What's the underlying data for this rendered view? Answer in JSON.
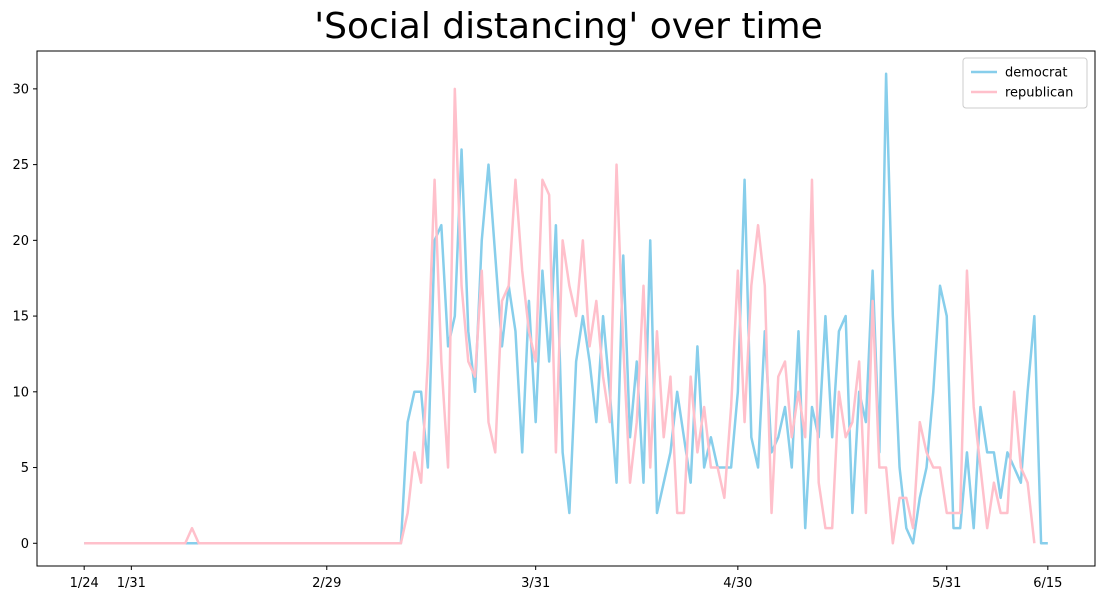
{
  "chart_data": {
    "type": "line",
    "title": "'Social distancing' over time",
    "xlabel": "",
    "ylabel": "",
    "x_tick_labels": [
      "1/24",
      "1/31",
      "2/29",
      "3/31",
      "4/30",
      "5/31",
      "6/15"
    ],
    "x_tick_day_index": [
      0,
      7,
      36,
      67,
      97,
      128,
      143
    ],
    "y_ticks": [
      0,
      5,
      10,
      15,
      20,
      25,
      30
    ],
    "ylim": [
      -1.5,
      32.5
    ],
    "xlim_day_index": [
      -7,
      150
    ],
    "grid": false,
    "legend_position": "top-right",
    "series": [
      {
        "name": "democrat",
        "color": "#87ceeb",
        "values": [
          0,
          0,
          0,
          0,
          0,
          0,
          0,
          0,
          0,
          0,
          0,
          0,
          0,
          0,
          0,
          0,
          0,
          0,
          0,
          0,
          0,
          0,
          0,
          0,
          0,
          0,
          0,
          0,
          0,
          0,
          0,
          0,
          0,
          0,
          0,
          0,
          0,
          0,
          0,
          0,
          0,
          0,
          0,
          0,
          0,
          0,
          0,
          0,
          8,
          10,
          10,
          5,
          20,
          21,
          13,
          15,
          26,
          14,
          10,
          20,
          25,
          19,
          13,
          17,
          14,
          6,
          16,
          8,
          18,
          12,
          21,
          6,
          2,
          12,
          15,
          12,
          8,
          15,
          10,
          4,
          19,
          7,
          12,
          4,
          20,
          2,
          4,
          6,
          10,
          7,
          4,
          13,
          5,
          7,
          5,
          5,
          5,
          10,
          24,
          7,
          5,
          14,
          6,
          7,
          9,
          5,
          14,
          1,
          9,
          7,
          15,
          7,
          14,
          15,
          2,
          10,
          8,
          18,
          6,
          31,
          15,
          5,
          1,
          0,
          3,
          5,
          10,
          17,
          15,
          1,
          1,
          6,
          1,
          9,
          6,
          6,
          3,
          6,
          5,
          4,
          10,
          15,
          0,
          0
        ]
      },
      {
        "name": "republican",
        "color": "#ffc0cb",
        "values": [
          0,
          0,
          0,
          0,
          0,
          0,
          0,
          0,
          0,
          0,
          0,
          0,
          0,
          0,
          0,
          0,
          1,
          0,
          0,
          0,
          0,
          0,
          0,
          0,
          0,
          0,
          0,
          0,
          0,
          0,
          0,
          0,
          0,
          0,
          0,
          0,
          0,
          0,
          0,
          0,
          0,
          0,
          0,
          0,
          0,
          0,
          0,
          0,
          2,
          6,
          4,
          12,
          24,
          12,
          5,
          30,
          17,
          12,
          11,
          18,
          8,
          6,
          16,
          17,
          24,
          18,
          14,
          12,
          24,
          23,
          6,
          20,
          17,
          15,
          20,
          13,
          16,
          11,
          8,
          25,
          13,
          4,
          8,
          17,
          5,
          14,
          7,
          11,
          2,
          2,
          11,
          6,
          9,
          5,
          5,
          3,
          9,
          18,
          8,
          17,
          21,
          17,
          2,
          11,
          12,
          7,
          10,
          7,
          24,
          4,
          1,
          1,
          10,
          7,
          8,
          12,
          2,
          16,
          5,
          5,
          0,
          3,
          3,
          1,
          8,
          6,
          5,
          5,
          2,
          2,
          2,
          18,
          9,
          5,
          1,
          4,
          2,
          2,
          10,
          5,
          4,
          0
        ]
      }
    ]
  }
}
